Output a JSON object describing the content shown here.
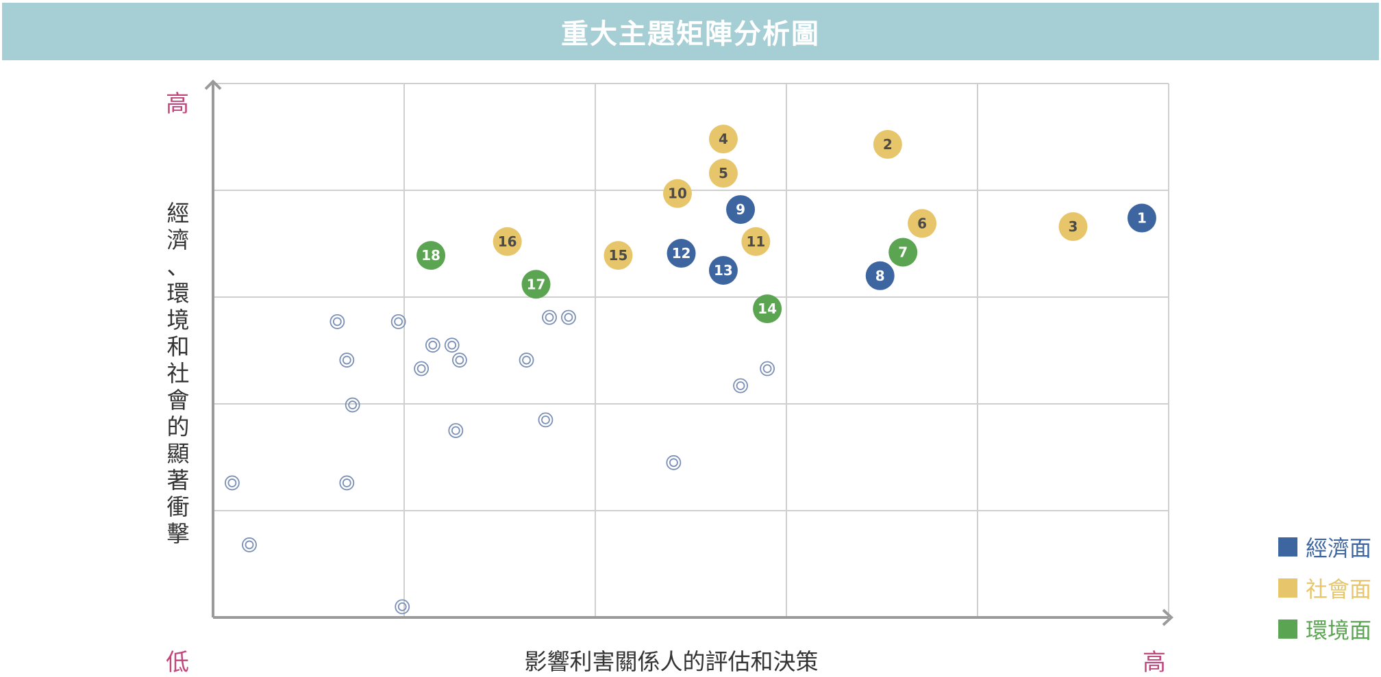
{
  "banner": {
    "title": "重大主題矩陣分析圖"
  },
  "chart_data": {
    "type": "scatter",
    "title": "重大主題矩陣分析圖",
    "xlabel": "影響利害關係人的評估和決策",
    "ylabel": "經濟、環境和社會的顯著衝擊",
    "x_low_label": "低",
    "x_high_label": "高",
    "y_high_label": "高",
    "xlim": [
      0,
      5
    ],
    "ylim": [
      0,
      5
    ],
    "grid": true,
    "legend_position": "bottom-right",
    "legend": [
      {
        "name": "經濟面",
        "color": "#3d66a0"
      },
      {
        "name": "社會面",
        "color": "#e7c56b"
      },
      {
        "name": "環境面",
        "color": "#5ba451"
      }
    ],
    "points": [
      {
        "label": "1",
        "category": "經濟面",
        "x": 4.86,
        "y": 3.74
      },
      {
        "label": "2",
        "category": "社會面",
        "x": 3.53,
        "y": 4.43
      },
      {
        "label": "3",
        "category": "社會面",
        "x": 4.5,
        "y": 3.66
      },
      {
        "label": "4",
        "category": "社會面",
        "x": 2.67,
        "y": 4.48
      },
      {
        "label": "5",
        "category": "社會面",
        "x": 2.67,
        "y": 4.16
      },
      {
        "label": "6",
        "category": "社會面",
        "x": 3.71,
        "y": 3.69
      },
      {
        "label": "7",
        "category": "環境面",
        "x": 3.61,
        "y": 3.42
      },
      {
        "label": "8",
        "category": "經濟面",
        "x": 3.49,
        "y": 3.2
      },
      {
        "label": "9",
        "category": "經濟面",
        "x": 2.76,
        "y": 3.82
      },
      {
        "label": "10",
        "category": "社會面",
        "x": 2.43,
        "y": 3.97
      },
      {
        "label": "11",
        "category": "社會面",
        "x": 2.84,
        "y": 3.52
      },
      {
        "label": "12",
        "category": "經濟面",
        "x": 2.45,
        "y": 3.41
      },
      {
        "label": "13",
        "category": "經濟面",
        "x": 2.67,
        "y": 3.25
      },
      {
        "label": "14",
        "category": "環境面",
        "x": 2.9,
        "y": 2.89
      },
      {
        "label": "15",
        "category": "社會面",
        "x": 2.12,
        "y": 3.39
      },
      {
        "label": "16",
        "category": "社會面",
        "x": 1.54,
        "y": 3.52
      },
      {
        "label": "17",
        "category": "環境面",
        "x": 1.69,
        "y": 3.12
      },
      {
        "label": "18",
        "category": "環境面",
        "x": 1.14,
        "y": 3.39
      }
    ],
    "unlabeled_points": [
      {
        "x": 0.65,
        "y": 2.77
      },
      {
        "x": 0.97,
        "y": 2.77
      },
      {
        "x": 1.15,
        "y": 2.55
      },
      {
        "x": 1.25,
        "y": 2.55
      },
      {
        "x": 1.76,
        "y": 2.81
      },
      {
        "x": 1.86,
        "y": 2.81
      },
      {
        "x": 0.7,
        "y": 2.41
      },
      {
        "x": 1.09,
        "y": 2.33
      },
      {
        "x": 1.29,
        "y": 2.41
      },
      {
        "x": 1.64,
        "y": 2.41
      },
      {
        "x": 2.76,
        "y": 2.17
      },
      {
        "x": 2.9,
        "y": 2.33
      },
      {
        "x": 0.73,
        "y": 1.99
      },
      {
        "x": 1.27,
        "y": 1.75
      },
      {
        "x": 1.74,
        "y": 1.85
      },
      {
        "x": 2.41,
        "y": 1.45
      },
      {
        "x": 0.1,
        "y": 1.26
      },
      {
        "x": 0.7,
        "y": 1.26
      },
      {
        "x": 0.19,
        "y": 0.68
      },
      {
        "x": 0.99,
        "y": 0.1
      }
    ]
  }
}
